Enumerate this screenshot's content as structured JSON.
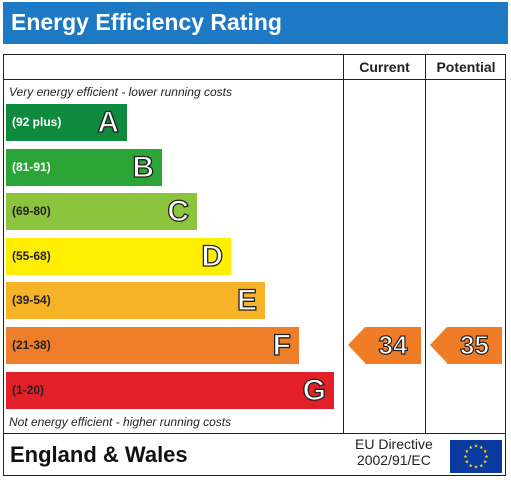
{
  "header": {
    "title": "Energy Efficiency Rating",
    "color": "#1e79c4"
  },
  "table": {
    "col_current": "Current",
    "col_potential": "Potential",
    "top_caption": "Very energy efficient - lower running costs",
    "bottom_caption": "Not energy efficient - higher running costs"
  },
  "footer": {
    "region": "England & Wales",
    "directive_line1": "EU Directive",
    "directive_line2": "2002/91/EC",
    "flag_icon": "eu-flag-icon"
  },
  "chart_data": {
    "type": "bar",
    "title": "Energy Efficiency Rating",
    "categories": [
      "A",
      "B",
      "C",
      "D",
      "E",
      "F",
      "G"
    ],
    "bands": [
      {
        "letter": "A",
        "range": "(92 plus)",
        "color": "#0d8a3e",
        "text_color": "#ffffff"
      },
      {
        "letter": "B",
        "range": "(81-91)",
        "color": "#2aa536",
        "text_color": "#ffffff"
      },
      {
        "letter": "C",
        "range": "(69-80)",
        "color": "#8cc43d",
        "text_color": "#222222"
      },
      {
        "letter": "D",
        "range": "(55-68)",
        "color": "#ffee00",
        "text_color": "#222222"
      },
      {
        "letter": "E",
        "range": "(39-54)",
        "color": "#f6b328",
        "text_color": "#222222"
      },
      {
        "letter": "F",
        "range": "(21-38)",
        "color": "#ef7e2a",
        "text_color": "#222222"
      },
      {
        "letter": "G",
        "range": "(1-20)",
        "color": "#e3202a",
        "text_color": "#222222"
      }
    ],
    "current": {
      "value": 34,
      "band": "F",
      "color": "#f07d26"
    },
    "potential": {
      "value": 35,
      "band": "F",
      "color": "#f07d26"
    }
  }
}
